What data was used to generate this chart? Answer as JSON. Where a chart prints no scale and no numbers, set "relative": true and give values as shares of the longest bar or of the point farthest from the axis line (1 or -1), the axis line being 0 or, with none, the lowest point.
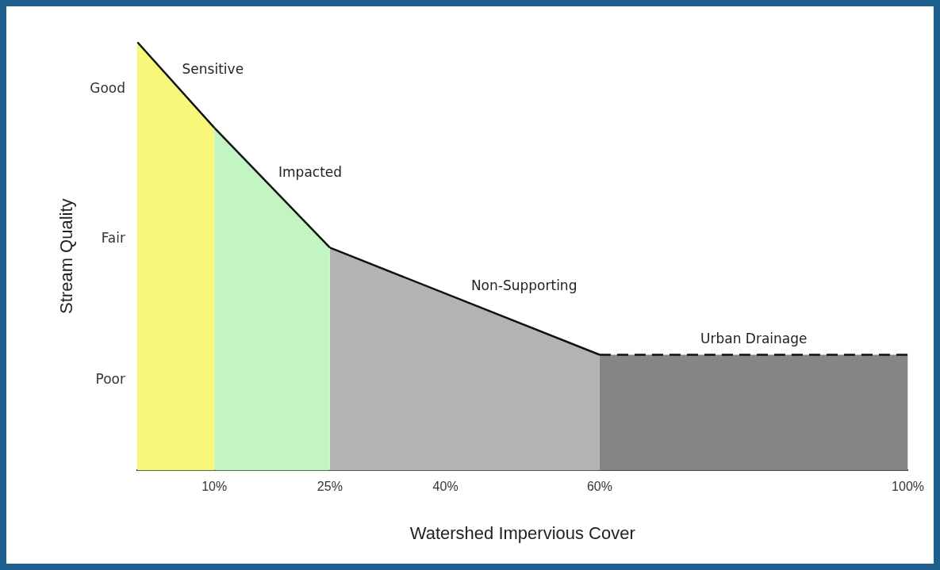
{
  "chart_data": {
    "type": "area",
    "xlabel": "Watershed Impervious Cover",
    "ylabel": "Stream Quality",
    "relative": true,
    "xlim": [
      0,
      100
    ],
    "xticks": [
      {
        "value": 10,
        "label": "10%"
      },
      {
        "value": 25,
        "label": "25%"
      },
      {
        "value": 40,
        "label": "40%"
      },
      {
        "value": 60,
        "label": "60%"
      },
      {
        "value": 100,
        "label": "100%"
      }
    ],
    "annotations": [
      "Good",
      "Fair",
      "Poor"
    ],
    "grid": false,
    "legend": false,
    "marker": "none",
    "series": [
      {
        "name": "Sensitive",
        "color": "#f7f77a",
        "x": [
          0,
          10
        ],
        "values": [
          1,
          0.8
        ]
      },
      {
        "name": "Impacted",
        "color": "#c2f5c2",
        "x": [
          10,
          25
        ],
        "values": [
          0.8,
          0.52
        ]
      },
      {
        "name": "Non-Supporting",
        "color": "#b3b3b3",
        "x": [
          25,
          60
        ],
        "values": [
          0.52,
          0.27
        ]
      },
      {
        "name": "Urban Drainage",
        "color": "#858585",
        "x": [
          60,
          100
        ],
        "values": [
          0.27,
          0.27
        ],
        "line_style": "dashed"
      }
    ]
  }
}
